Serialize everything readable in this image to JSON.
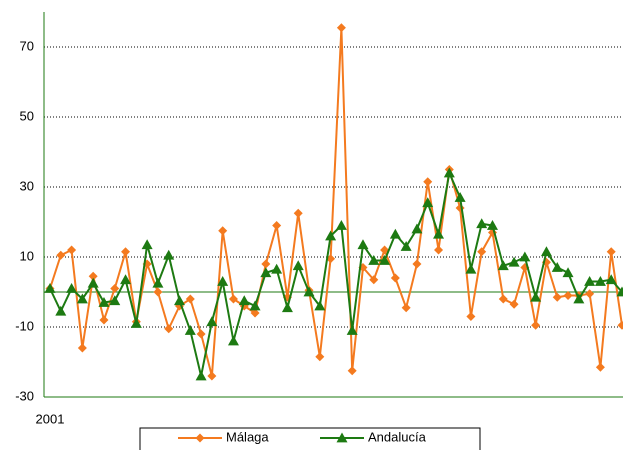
{
  "chart_data": {
    "type": "line",
    "categories": [
      "2001",
      null,
      null,
      null,
      null,
      null,
      null,
      null,
      null,
      null,
      null,
      null,
      null,
      null,
      null,
      null,
      null,
      null,
      null,
      null,
      null,
      null,
      null,
      null,
      null,
      null,
      null,
      null,
      null,
      null,
      null,
      null,
      null,
      null,
      null,
      null,
      null,
      null,
      null,
      null,
      null,
      null,
      null,
      null,
      null,
      null,
      null,
      null,
      null,
      null,
      null,
      null,
      null,
      null
    ],
    "series": [
      {
        "name": "Málaga",
        "color": "#f47a1f",
        "marker": "diamond",
        "values": [
          1,
          10.5,
          12,
          -16,
          4.5,
          -8,
          1,
          11.5,
          -8.5,
          8,
          0,
          -10.5,
          -4,
          -2,
          -12,
          -24,
          17.5,
          -2,
          -4,
          -6,
          8,
          19,
          -1.5,
          22.5,
          0.5,
          -18.5,
          9.5,
          75.5,
          -22.5,
          7,
          3.5,
          12,
          4,
          -4.5,
          8,
          31.5,
          12,
          35,
          24,
          -7,
          11.5,
          17,
          -2,
          -3.5,
          7,
          -9.5,
          8.5,
          -1.5,
          -1,
          -1,
          -0.5,
          -21.5,
          11.5,
          -9.5
        ]
      },
      {
        "name": "Andalucía",
        "color": "#1d7a12",
        "marker": "triangle",
        "values": [
          1,
          -5.5,
          1,
          -2,
          2.5,
          -3,
          -2.5,
          3.5,
          -9,
          13.5,
          2.5,
          10.5,
          -2.5,
          -11,
          -24,
          -8.5,
          3,
          -14,
          -2.5,
          -4,
          5.5,
          6.5,
          -4.5,
          7.5,
          0,
          -4,
          16,
          19,
          -11,
          13.5,
          9,
          9,
          16.5,
          13,
          18,
          25.5,
          16.5,
          34,
          27,
          6.5,
          19.5,
          19,
          7.5,
          8.5,
          10,
          -1.5,
          11.5,
          7,
          5.5,
          -2,
          3,
          3,
          3.5,
          0
        ]
      }
    ],
    "ylim": [
      -30,
      80
    ],
    "yticks": [
      -30,
      -10,
      10,
      30,
      50,
      70
    ],
    "grid": true,
    "axis_color": "#1d7a12",
    "legend": "bottom"
  }
}
